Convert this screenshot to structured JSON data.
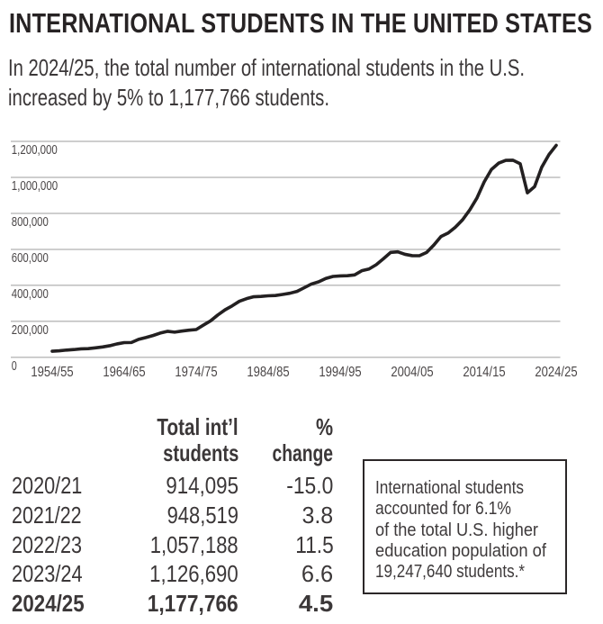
{
  "header": {
    "title": "INTERNATIONAL STUDENTS IN THE UNITED STATES",
    "subtitle_line1": "In 2024/25, the total number of international students in the U.S.",
    "subtitle_line2": "increased by 5% to 1,177,766 students."
  },
  "chart_data": {
    "type": "line",
    "title": "International students in the U.S., 1954/55 - 2024/25",
    "xlabel": "",
    "ylabel": "",
    "ylim": [
      0,
      1200000
    ],
    "grid": "horizontal",
    "legend": "none",
    "line_color": "#232021",
    "gridline_color": "#9c9c9c",
    "x_tick_labels": [
      "1954/55",
      "1964/65",
      "1974/75",
      "1984/85",
      "1994/95",
      "2004/05",
      "2014/15",
      "2024/25"
    ],
    "y_tick_labels": [
      "0",
      "200,000",
      "400,000",
      "600,000",
      "800,000",
      "1,000,000",
      "1,200,000"
    ],
    "years": [
      "1954/55",
      "1955/56",
      "1956/57",
      "1957/58",
      "1958/59",
      "1959/60",
      "1960/61",
      "1961/62",
      "1962/63",
      "1963/64",
      "1964/65",
      "1965/66",
      "1966/67",
      "1967/68",
      "1968/69",
      "1969/70",
      "1970/71",
      "1971/72",
      "1972/73",
      "1973/74",
      "1974/75",
      "1975/76",
      "1976/77",
      "1977/78",
      "1978/79",
      "1979/80",
      "1980/81",
      "1981/82",
      "1982/83",
      "1983/84",
      "1984/85",
      "1985/86",
      "1986/87",
      "1987/88",
      "1988/89",
      "1989/90",
      "1990/91",
      "1991/92",
      "1992/93",
      "1993/94",
      "1994/95",
      "1995/96",
      "1996/97",
      "1997/98",
      "1998/99",
      "1999/00",
      "2000/01",
      "2001/02",
      "2002/03",
      "2003/04",
      "2004/05",
      "2005/06",
      "2006/07",
      "2007/08",
      "2008/09",
      "2009/10",
      "2010/11",
      "2011/12",
      "2012/13",
      "2013/14",
      "2014/15",
      "2015/16",
      "2016/17",
      "2017/18",
      "2018/19",
      "2019/20",
      "2020/21",
      "2021/22",
      "2022/23",
      "2023/24",
      "2024/25"
    ],
    "values": [
      34232,
      36494,
      40666,
      43391,
      47245,
      48486,
      53107,
      58086,
      64705,
      74814,
      82045,
      82709,
      100262,
      110315,
      121362,
      134959,
      144708,
      140126,
      146097,
      151066,
      154580,
      179344,
      203068,
      235509,
      263938,
      286343,
      311882,
      326299,
      336985,
      338894,
      342113,
      343777,
      349609,
      356187,
      366354,
      386851,
      407529,
      419585,
      438618,
      449749,
      452635,
      453787,
      457984,
      481280,
      490933,
      514723,
      547867,
      582996,
      586323,
      572509,
      565039,
      564766,
      582984,
      623805,
      671616,
      690923,
      723277,
      764495,
      819644,
      886052,
      974926,
      1043839,
      1078822,
      1094792,
      1095299,
      1075496,
      914095,
      948519,
      1057188,
      1126690,
      1177766
    ]
  },
  "table": {
    "header": {
      "total_line1": "Total int’l",
      "total_line2": "students",
      "pct_line1": "%",
      "pct_line2": "change"
    },
    "rows": [
      {
        "year": "2020/21",
        "total": "914,095",
        "change": "-15.0",
        "bold": false
      },
      {
        "year": "2021/22",
        "total": "948,519",
        "change": "3.8",
        "bold": false
      },
      {
        "year": "2022/23",
        "total": "1,057,188",
        "change": "11.5",
        "bold": false
      },
      {
        "year": "2023/24",
        "total": "1,126,690",
        "change": "6.6",
        "bold": false
      },
      {
        "year": "2024/25",
        "total": "1,177,766",
        "change": "4.5",
        "bold": true
      }
    ]
  },
  "callout": {
    "lines": [
      "International students",
      "accounted for 6.1%",
      "of the total U.S. higher",
      "education population of",
      "19,247,640 students.*"
    ]
  },
  "colors": {
    "background": "#ffffff",
    "title_text": "#272324",
    "body_text": "#3b3738",
    "axis_text": "#4a4647",
    "chart_line": "#232021",
    "gridline": "#9c9c9c",
    "callout_border": "#2b2728"
  }
}
